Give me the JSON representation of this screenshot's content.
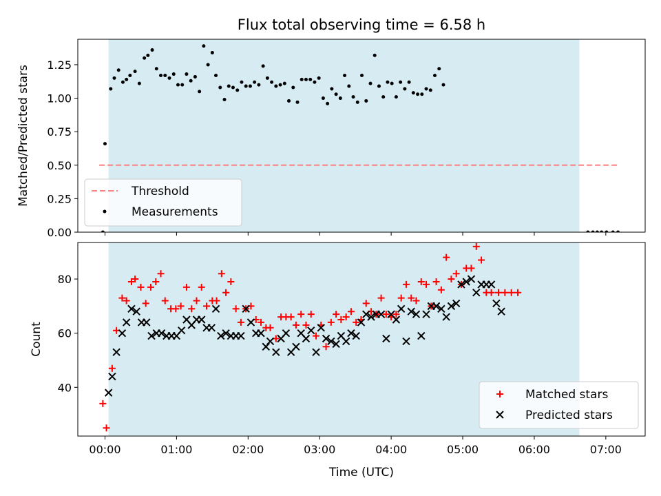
{
  "title": "Flux total observing time = 6.58 h",
  "colors": {
    "shade": "#add8e6",
    "threshold": "#ff7f7f",
    "measurements": "#000000",
    "matched": "#ff0000",
    "predicted": "#000000"
  },
  "chart_data": [
    {
      "type": "scatter",
      "ylabel": "Matched/Predicted stars",
      "ylim": [
        0,
        1.44
      ],
      "xlim": [
        -0.38,
        7.55
      ],
      "yticks": [
        0.0,
        0.25,
        0.5,
        0.75,
        1.0,
        1.25
      ],
      "ytick_labels": [
        "0.00",
        "0.25",
        "0.50",
        "0.75",
        "1.00",
        "1.25"
      ],
      "shaded_span": [
        0.05,
        6.63
      ],
      "threshold": {
        "name": "Threshold",
        "y": 0.5,
        "x_range": [
          -0.08,
          7.17
        ]
      },
      "legend_position": "lower-left",
      "series": [
        {
          "name": "Measurements",
          "points": [
            [
              -0.03,
              0.0
            ],
            [
              0.0,
              0.66
            ],
            [
              0.08,
              1.07
            ],
            [
              0.13,
              1.15
            ],
            [
              0.19,
              1.21
            ],
            [
              0.25,
              1.12
            ],
            [
              0.3,
              1.14
            ],
            [
              0.35,
              1.17
            ],
            [
              0.42,
              1.2
            ],
            [
              0.48,
              1.11
            ],
            [
              0.55,
              1.3
            ],
            [
              0.6,
              1.32
            ],
            [
              0.66,
              1.36
            ],
            [
              0.72,
              1.22
            ],
            [
              0.78,
              1.17
            ],
            [
              0.84,
              1.17
            ],
            [
              0.9,
              1.15
            ],
            [
              0.96,
              1.18
            ],
            [
              1.02,
              1.1
            ],
            [
              1.08,
              1.1
            ],
            [
              1.14,
              1.18
            ],
            [
              1.2,
              1.13
            ],
            [
              1.26,
              1.16
            ],
            [
              1.32,
              1.05
            ],
            [
              1.38,
              1.39
            ],
            [
              1.44,
              1.25
            ],
            [
              1.5,
              1.34
            ],
            [
              1.55,
              1.17
            ],
            [
              1.61,
              1.08
            ],
            [
              1.67,
              0.99
            ],
            [
              1.73,
              1.09
            ],
            [
              1.79,
              1.08
            ],
            [
              1.85,
              1.06
            ],
            [
              1.91,
              1.12
            ],
            [
              1.97,
              1.09
            ],
            [
              2.03,
              1.09
            ],
            [
              2.09,
              1.12
            ],
            [
              2.15,
              1.1
            ],
            [
              2.21,
              1.24
            ],
            [
              2.27,
              1.15
            ],
            [
              2.33,
              1.12
            ],
            [
              2.39,
              1.09
            ],
            [
              2.45,
              1.1
            ],
            [
              2.51,
              1.11
            ],
            [
              2.57,
              0.98
            ],
            [
              2.63,
              1.08
            ],
            [
              2.69,
              0.97
            ],
            [
              2.75,
              1.14
            ],
            [
              2.81,
              1.14
            ],
            [
              2.87,
              1.14
            ],
            [
              2.93,
              1.12
            ],
            [
              2.99,
              1.15
            ],
            [
              3.05,
              1.0
            ],
            [
              3.11,
              0.96
            ],
            [
              3.17,
              1.07
            ],
            [
              3.23,
              1.03
            ],
            [
              3.29,
              1.0
            ],
            [
              3.35,
              1.17
            ],
            [
              3.41,
              1.09
            ],
            [
              3.47,
              1.01
            ],
            [
              3.53,
              0.97
            ],
            [
              3.59,
              1.17
            ],
            [
              3.65,
              0.98
            ],
            [
              3.71,
              1.11
            ],
            [
              3.77,
              1.32
            ],
            [
              3.83,
              1.09
            ],
            [
              3.89,
              1.01
            ],
            [
              3.95,
              1.12
            ],
            [
              4.01,
              1.11
            ],
            [
              4.07,
              1.01
            ],
            [
              4.13,
              1.12
            ],
            [
              4.19,
              1.07
            ],
            [
              4.25,
              1.12
            ],
            [
              4.31,
              1.04
            ],
            [
              4.37,
              1.03
            ],
            [
              4.43,
              1.03
            ],
            [
              4.49,
              1.07
            ],
            [
              4.55,
              1.06
            ],
            [
              4.61,
              1.17
            ],
            [
              4.67,
              1.22
            ],
            [
              4.73,
              1.1
            ],
            [
              6.75,
              0.0
            ],
            [
              6.82,
              0.0
            ],
            [
              6.88,
              0.0
            ],
            [
              6.94,
              0.0
            ],
            [
              7.01,
              0.0
            ],
            [
              7.1,
              0.0
            ],
            [
              7.17,
              0.0
            ]
          ]
        }
      ]
    },
    {
      "type": "scatter",
      "ylabel": "Count",
      "xlabel": "Time (UTC)",
      "ylim": [
        22,
        93.5
      ],
      "xlim": [
        -0.38,
        7.55
      ],
      "yticks": [
        40,
        60,
        80
      ],
      "ytick_labels": [
        "40",
        "60",
        "80"
      ],
      "xticks": [
        0,
        1,
        2,
        3,
        4,
        5,
        6,
        7
      ],
      "xtick_labels": [
        "00:00",
        "01:00",
        "02:00",
        "03:00",
        "04:00",
        "05:00",
        "06:00",
        "07:00"
      ],
      "shaded_span": [
        0.05,
        6.63
      ],
      "legend_position": "lower-right",
      "series": [
        {
          "name": "Matched stars",
          "marker": "plus",
          "points": [
            [
              -0.03,
              34
            ],
            [
              0.02,
              25
            ],
            [
              0.1,
              47
            ],
            [
              0.16,
              61
            ],
            [
              0.24,
              73
            ],
            [
              0.3,
              72
            ],
            [
              0.37,
              79
            ],
            [
              0.42,
              80
            ],
            [
              0.5,
              77
            ],
            [
              0.57,
              71
            ],
            [
              0.64,
              77
            ],
            [
              0.71,
              79
            ],
            [
              0.78,
              82
            ],
            [
              0.84,
              72
            ],
            [
              0.92,
              69
            ],
            [
              0.99,
              69
            ],
            [
              1.06,
              70
            ],
            [
              1.14,
              77
            ],
            [
              1.21,
              69
            ],
            [
              1.28,
              72
            ],
            [
              1.35,
              77
            ],
            [
              1.42,
              70
            ],
            [
              1.5,
              72
            ],
            [
              1.56,
              72
            ],
            [
              1.63,
              82
            ],
            [
              1.69,
              75
            ],
            [
              1.76,
              79
            ],
            [
              1.83,
              69
            ],
            [
              1.9,
              64
            ],
            [
              1.97,
              69
            ],
            [
              2.04,
              70
            ],
            [
              2.11,
              65
            ],
            [
              2.18,
              64
            ],
            [
              2.25,
              62
            ],
            [
              2.31,
              62
            ],
            [
              2.39,
              58
            ],
            [
              2.46,
              66
            ],
            [
              2.53,
              66
            ],
            [
              2.6,
              66
            ],
            [
              2.67,
              63
            ],
            [
              2.74,
              67
            ],
            [
              2.81,
              63
            ],
            [
              2.88,
              67
            ],
            [
              2.95,
              59
            ],
            [
              3.02,
              63
            ],
            [
              3.09,
              55
            ],
            [
              3.16,
              64
            ],
            [
              3.23,
              67
            ],
            [
              3.3,
              65
            ],
            [
              3.37,
              66
            ],
            [
              3.44,
              68
            ],
            [
              3.51,
              64
            ],
            [
              3.58,
              65
            ],
            [
              3.65,
              71
            ],
            [
              3.72,
              68
            ],
            [
              3.79,
              67
            ],
            [
              3.86,
              73
            ],
            [
              3.93,
              67
            ],
            [
              4.0,
              66
            ],
            [
              4.07,
              67
            ],
            [
              4.14,
              73
            ],
            [
              4.21,
              78
            ],
            [
              4.28,
              73
            ],
            [
              4.35,
              72
            ],
            [
              4.42,
              79
            ],
            [
              4.49,
              78
            ],
            [
              4.56,
              70
            ],
            [
              4.63,
              79
            ],
            [
              4.7,
              76
            ],
            [
              4.77,
              88
            ],
            [
              4.84,
              80
            ],
            [
              4.91,
              82
            ],
            [
              4.98,
              78
            ],
            [
              5.05,
              84
            ],
            [
              5.12,
              84
            ],
            [
              5.19,
              92
            ],
            [
              5.26,
              87
            ],
            [
              5.33,
              75
            ],
            [
              5.4,
              75
            ],
            [
              5.5,
              75
            ],
            [
              5.59,
              75
            ],
            [
              5.68,
              75
            ],
            [
              5.77,
              75
            ]
          ]
        },
        {
          "name": "Predicted stars",
          "marker": "x",
          "points": [
            [
              0.05,
              38
            ],
            [
              0.1,
              44
            ],
            [
              0.16,
              53
            ],
            [
              0.24,
              60
            ],
            [
              0.3,
              64
            ],
            [
              0.37,
              69
            ],
            [
              0.44,
              68
            ],
            [
              0.51,
              64
            ],
            [
              0.58,
              64
            ],
            [
              0.65,
              59
            ],
            [
              0.72,
              60
            ],
            [
              0.79,
              60
            ],
            [
              0.86,
              59
            ],
            [
              0.93,
              59
            ],
            [
              1.0,
              59
            ],
            [
              1.07,
              61
            ],
            [
              1.14,
              65
            ],
            [
              1.21,
              63
            ],
            [
              1.28,
              65
            ],
            [
              1.35,
              65
            ],
            [
              1.42,
              62
            ],
            [
              1.49,
              62
            ],
            [
              1.55,
              69
            ],
            [
              1.62,
              59
            ],
            [
              1.69,
              60
            ],
            [
              1.76,
              59
            ],
            [
              1.83,
              59
            ],
            [
              1.9,
              59
            ],
            [
              1.97,
              69
            ],
            [
              2.04,
              64
            ],
            [
              2.11,
              60
            ],
            [
              2.18,
              60
            ],
            [
              2.25,
              55
            ],
            [
              2.31,
              57
            ],
            [
              2.39,
              53
            ],
            [
              2.46,
              58
            ],
            [
              2.53,
              60
            ],
            [
              2.6,
              53
            ],
            [
              2.67,
              55
            ],
            [
              2.74,
              60
            ],
            [
              2.81,
              58
            ],
            [
              2.88,
              61
            ],
            [
              2.95,
              53
            ],
            [
              3.02,
              62
            ],
            [
              3.09,
              58
            ],
            [
              3.16,
              57
            ],
            [
              3.23,
              56
            ],
            [
              3.3,
              59
            ],
            [
              3.37,
              57
            ],
            [
              3.44,
              60
            ],
            [
              3.51,
              59
            ],
            [
              3.58,
              64
            ],
            [
              3.65,
              67
            ],
            [
              3.72,
              66
            ],
            [
              3.79,
              67
            ],
            [
              3.86,
              67
            ],
            [
              3.93,
              58
            ],
            [
              4.0,
              67
            ],
            [
              4.07,
              65
            ],
            [
              4.14,
              69
            ],
            [
              4.21,
              57
            ],
            [
              4.28,
              68
            ],
            [
              4.35,
              67
            ],
            [
              4.42,
              59
            ],
            [
              4.49,
              67
            ],
            [
              4.56,
              70
            ],
            [
              4.63,
              70
            ],
            [
              4.7,
              69
            ],
            [
              4.77,
              66
            ],
            [
              4.84,
              70
            ],
            [
              4.91,
              71
            ],
            [
              4.98,
              78
            ],
            [
              5.05,
              79
            ],
            [
              5.12,
              80
            ],
            [
              5.19,
              75
            ],
            [
              5.26,
              78
            ],
            [
              5.33,
              78
            ],
            [
              5.4,
              78
            ],
            [
              5.47,
              71
            ],
            [
              5.54,
              68
            ]
          ]
        }
      ]
    }
  ]
}
